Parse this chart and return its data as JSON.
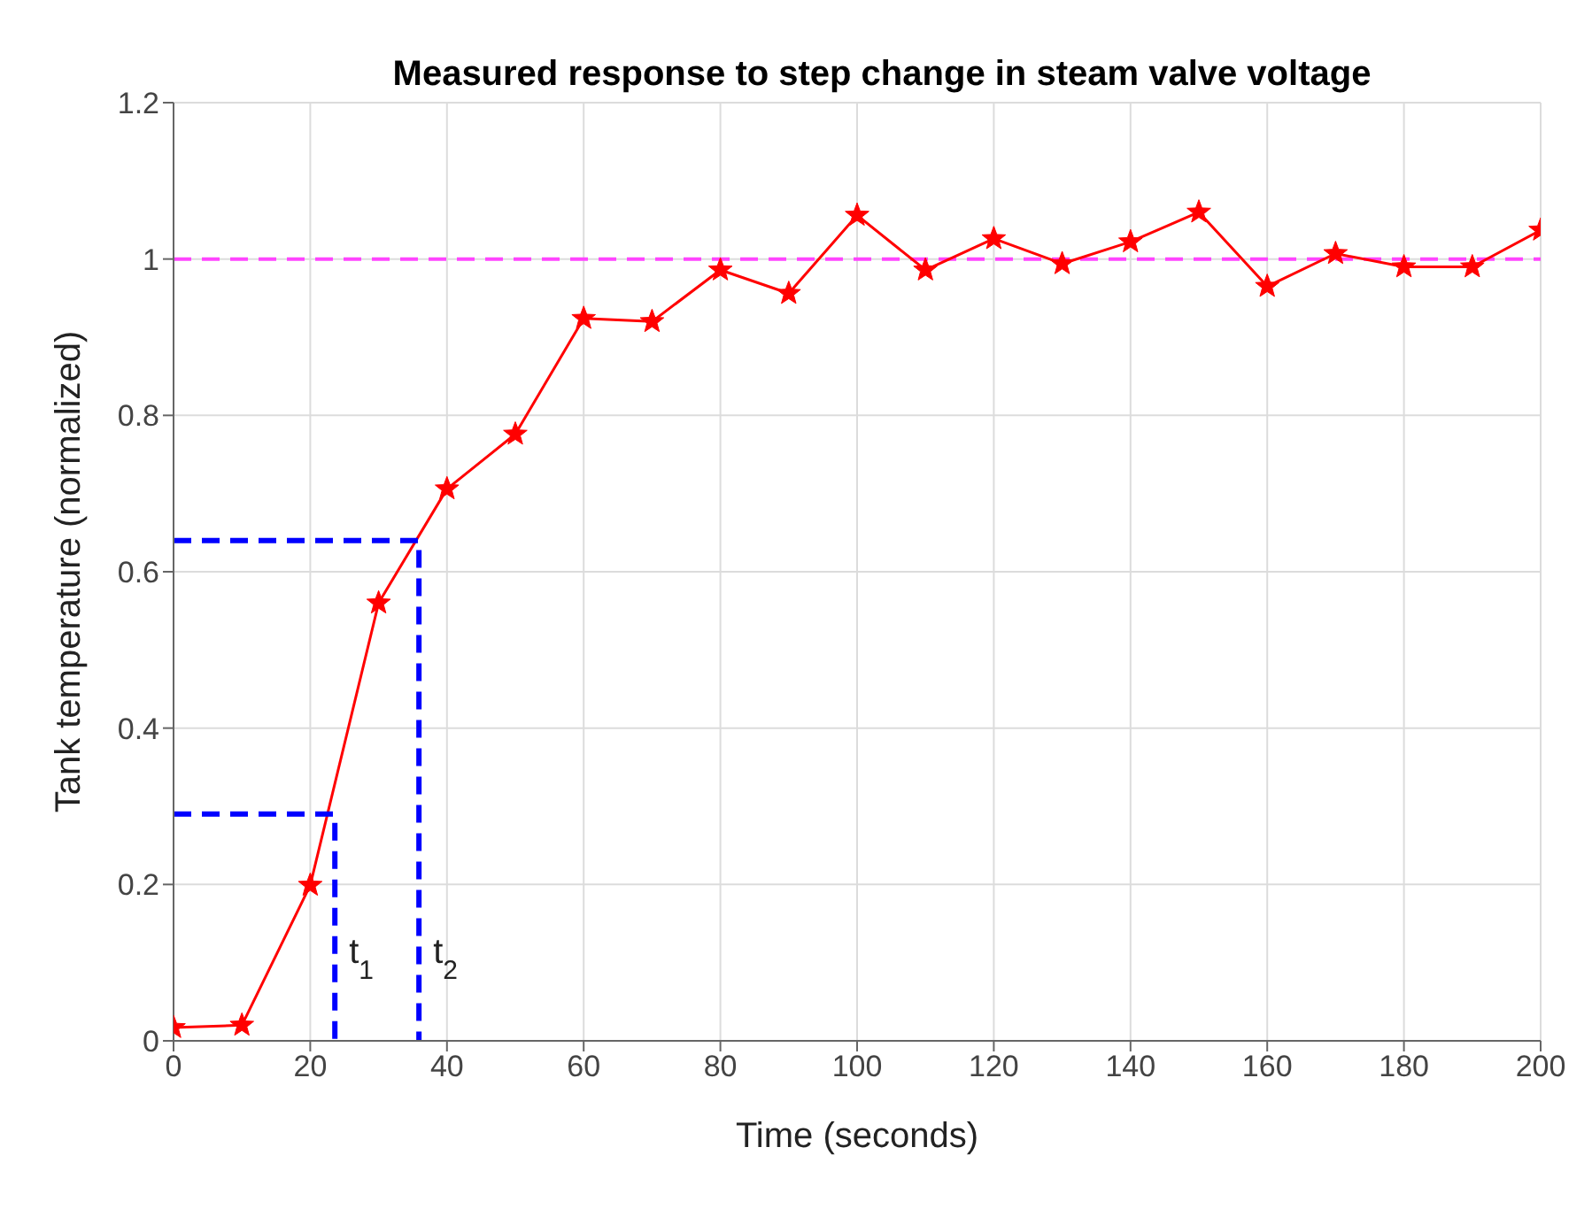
{
  "chart_data": {
    "type": "line",
    "title": "Measured response to step change in steam valve voltage",
    "xlabel": "Time (seconds)",
    "ylabel": "Tank temperature (normalized)",
    "xlim": [
      0,
      200
    ],
    "xticks": [
      0,
      20,
      40,
      60,
      80,
      100,
      120,
      140,
      160,
      180,
      200
    ],
    "ylim": [
      0,
      1.2
    ],
    "yticks": [
      0,
      0.2,
      0.4,
      0.6,
      0.8,
      1,
      1.2
    ],
    "grid": true,
    "series": [
      {
        "color": "#ff0000",
        "marker": "star",
        "line_style": "solid",
        "x": [
          0,
          10,
          20,
          30,
          40,
          50,
          60,
          70,
          80,
          90,
          100,
          110,
          120,
          130,
          140,
          150,
          160,
          170,
          180,
          190,
          200
        ],
        "values": [
          0.017,
          0.02,
          0.199,
          0.56,
          0.706,
          0.776,
          0.924,
          0.92,
          0.986,
          0.956,
          1.056,
          0.986,
          1.026,
          0.994,
          1.022,
          1.06,
          0.965,
          1.007,
          0.99,
          0.99,
          1.037
        ]
      },
      {
        "color": "#0000ff",
        "marker": "none",
        "line_style": "dashed",
        "x": [
          0,
          23.6,
          23.6
        ],
        "values": [
          0.29,
          0.29,
          0
        ]
      },
      {
        "color": "#0000ff",
        "marker": "none",
        "line_style": "dashed",
        "x": [
          0,
          35.9,
          35.9
        ],
        "values": [
          0.64,
          0.64,
          0
        ]
      }
    ],
    "ref_lines": [
      {
        "axis": "y",
        "value": 1,
        "color": "#ff44ff",
        "line_style": "dashed"
      }
    ],
    "annotations": [
      {
        "text": "t$_{1}$",
        "x": 23.6,
        "y": 0.1
      },
      {
        "text": "t$_{2}$",
        "x": 35.9,
        "y": 0.1
      }
    ]
  }
}
